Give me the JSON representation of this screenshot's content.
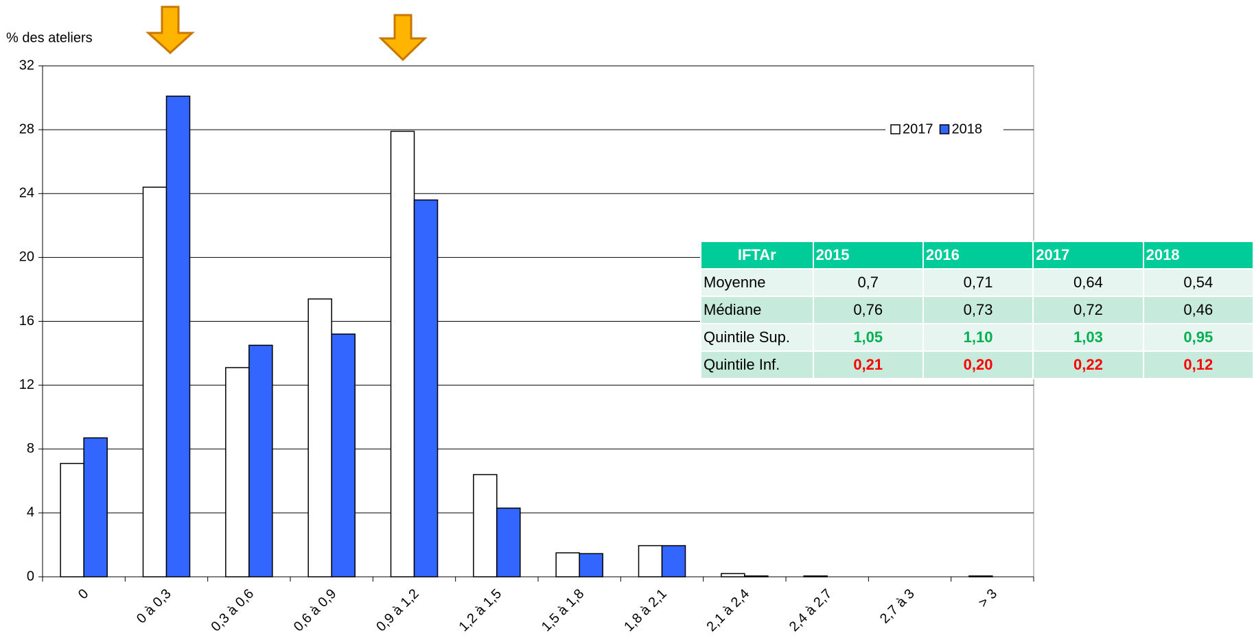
{
  "chart_data": {
    "type": "bar",
    "y_label": "% des ateliers",
    "categories": [
      "0",
      "0 à 0,3",
      "0,3 à 0,6",
      "0,6 à 0,9",
      "0,9 à 1,2",
      "1,2 à 1,5",
      "1,5 à 1,8",
      "1,8 à 2,1",
      "2,1 à 2,4",
      "2,4 à 2,7",
      "2,7 à 3",
      "> 3"
    ],
    "series": [
      {
        "name": "2017",
        "color": "#ffffff",
        "values": [
          7.1,
          24.4,
          13.1,
          17.4,
          27.9,
          6.4,
          1.5,
          1.95,
          0.2,
          0.05,
          0,
          0.05
        ]
      },
      {
        "name": "2018",
        "color": "#3366ff",
        "values": [
          8.7,
          30.1,
          14.5,
          15.2,
          23.6,
          4.3,
          1.45,
          1.95,
          0.05,
          0,
          0,
          0
        ]
      }
    ],
    "ylim": [
      0,
      32
    ],
    "yticks": [
      0,
      4,
      8,
      12,
      16,
      20,
      24,
      28,
      32
    ],
    "grid": true
  },
  "table": {
    "header": [
      "IFTAr",
      "2015",
      "2016",
      "2017",
      "2018"
    ],
    "rows": [
      [
        "Moyenne",
        "0,7",
        "0,71",
        "0,64",
        "0,54"
      ],
      [
        "Médiane",
        "0,76",
        "0,73",
        "0,72",
        "0,46"
      ],
      [
        "Quintile Sup.",
        "1,05",
        "1,10",
        "1,03",
        "0,95"
      ],
      [
        "Quintile Inf.",
        "0,21",
        "0,20",
        "0,22",
        "0,12"
      ]
    ]
  }
}
